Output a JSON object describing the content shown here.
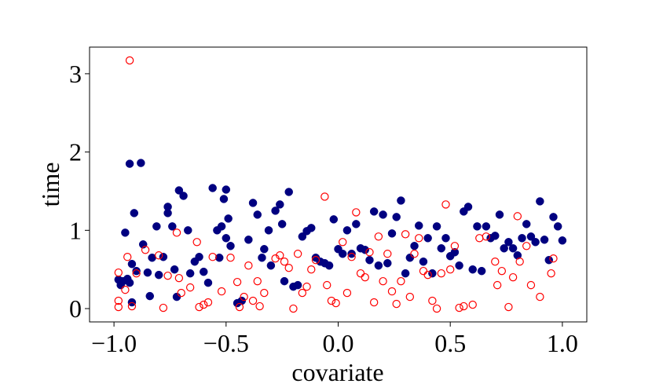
{
  "chart_data": {
    "type": "scatter",
    "x_label": "covariate",
    "y_label": "time",
    "xlim": [
      -1.109,
      1.109
    ],
    "ylim": [
      -0.17,
      3.34
    ],
    "xticks": [
      {
        "value": -1,
        "label": "−1.0"
      },
      {
        "value": -0.5,
        "label": "−0.5"
      },
      {
        "value": 0,
        "label": "0.0"
      },
      {
        "value": 0.5,
        "label": "0.5"
      },
      {
        "value": 1,
        "label": "1.0"
      }
    ],
    "yticks": [
      0,
      1,
      2,
      3
    ],
    "series": [
      {
        "color": "#000080",
        "filled": true,
        "x": [
          -0.98,
          -0.97,
          -0.96,
          -0.95,
          -0.93,
          -0.88,
          -0.91,
          -0.92,
          -0.9,
          -0.87,
          -0.93,
          -0.94,
          -0.92,
          -0.85,
          -0.84,
          -0.83,
          -0.81,
          -0.8,
          -0.78,
          -0.76,
          -0.76,
          -0.74,
          -0.73,
          -0.72,
          -0.71,
          -0.69,
          -0.67,
          -0.66,
          -0.64,
          -0.62,
          -0.6,
          -0.58,
          -0.56,
          -0.54,
          -0.53,
          -0.52,
          -0.5,
          -0.49,
          -0.5,
          -0.48,
          -0.51,
          -0.45,
          -0.43,
          -0.4,
          -0.38,
          -0.36,
          -0.34,
          -0.33,
          -0.31,
          -0.3,
          -0.28,
          -0.26,
          -0.25,
          -0.24,
          -0.22,
          -0.2,
          -0.18,
          -0.16,
          -0.14,
          -0.12,
          -0.1,
          -0.08,
          -0.06,
          -0.04,
          -0.02,
          0.0,
          0.02,
          0.04,
          0.06,
          0.08,
          0.1,
          0.12,
          0.14,
          0.16,
          0.18,
          0.2,
          0.22,
          0.24,
          0.26,
          0.28,
          0.3,
          0.32,
          0.34,
          0.36,
          0.38,
          0.4,
          0.42,
          0.44,
          0.46,
          0.48,
          0.5,
          0.52,
          0.54,
          0.56,
          0.58,
          0.6,
          0.62,
          0.64,
          0.66,
          0.68,
          0.7,
          0.72,
          0.74,
          0.76,
          0.78,
          0.8,
          0.82,
          0.84,
          0.86,
          0.88,
          0.9,
          0.92,
          0.94,
          0.96,
          0.98,
          1.0
        ],
        "values": [
          0.37,
          0.3,
          0.35,
          0.97,
          1.85,
          1.86,
          1.22,
          0.57,
          0.48,
          0.82,
          0.33,
          0.38,
          0.08,
          0.46,
          0.16,
          0.65,
          1.05,
          0.43,
          0.66,
          1.3,
          1.22,
          1.05,
          0.5,
          0.15,
          1.51,
          1.44,
          1.0,
          0.45,
          0.6,
          0.66,
          0.47,
          0.33,
          1.54,
          1.0,
          0.65,
          1.05,
          1.52,
          1.15,
          0.9,
          0.8,
          1.4,
          0.07,
          0.1,
          0.88,
          1.35,
          1.2,
          0.65,
          0.76,
          1.0,
          0.55,
          1.25,
          1.33,
          1.08,
          0.35,
          1.49,
          0.28,
          0.3,
          0.92,
          0.99,
          1.03,
          0.65,
          0.6,
          0.58,
          0.55,
          1.14,
          0.76,
          0.7,
          1.0,
          0.7,
          1.08,
          0.77,
          0.75,
          0.62,
          1.24,
          0.55,
          1.2,
          0.58,
          0.96,
          1.17,
          1.38,
          0.45,
          0.65,
          0.8,
          1.06,
          0.6,
          0.9,
          0.45,
          1.05,
          0.77,
          0.9,
          0.67,
          0.72,
          0.55,
          1.24,
          1.3,
          0.5,
          1.05,
          0.48,
          1.05,
          0.9,
          0.93,
          1.2,
          0.77,
          0.85,
          0.77,
          0.68,
          0.9,
          1.08,
          0.92,
          0.85,
          1.37,
          0.88,
          0.62,
          1.17,
          1.05,
          0.87
        ]
      },
      {
        "color": "#ff0000",
        "filled": false,
        "x": [
          -0.98,
          -0.98,
          -0.98,
          -0.95,
          -0.94,
          -0.93,
          -0.92,
          -0.9,
          -0.86,
          -0.8,
          -0.78,
          -0.76,
          -0.72,
          -0.71,
          -0.7,
          -0.66,
          -0.63,
          -0.62,
          -0.6,
          -0.58,
          -0.56,
          -0.52,
          -0.48,
          -0.45,
          -0.44,
          -0.42,
          -0.4,
          -0.38,
          -0.36,
          -0.35,
          -0.33,
          -0.28,
          -0.26,
          -0.24,
          -0.22,
          -0.2,
          -0.18,
          -0.16,
          -0.14,
          -0.12,
          -0.1,
          -0.06,
          -0.05,
          -0.03,
          -0.01,
          0.02,
          0.04,
          0.06,
          0.08,
          0.1,
          0.12,
          0.14,
          0.16,
          0.18,
          0.2,
          0.22,
          0.24,
          0.26,
          0.28,
          0.3,
          0.32,
          0.34,
          0.36,
          0.38,
          0.4,
          0.42,
          0.44,
          0.46,
          0.48,
          0.5,
          0.52,
          0.54,
          0.56,
          0.6,
          0.63,
          0.66,
          0.7,
          0.71,
          0.73,
          0.76,
          0.78,
          0.8,
          0.81,
          0.84,
          0.86,
          0.9,
          0.95,
          0.96
        ],
        "values": [
          0.46,
          0.1,
          0.02,
          0.24,
          0.66,
          3.17,
          0.03,
          0.45,
          0.75,
          0.68,
          0.01,
          0.42,
          0.97,
          0.39,
          0.2,
          0.27,
          0.85,
          0.02,
          0.05,
          0.08,
          0.66,
          0.22,
          0.65,
          0.34,
          0.02,
          0.15,
          0.55,
          0.1,
          0.35,
          0.03,
          0.2,
          0.64,
          0.68,
          0.6,
          0.52,
          0.0,
          0.7,
          0.2,
          0.28,
          0.5,
          0.62,
          1.43,
          0.3,
          0.1,
          0.07,
          0.85,
          0.2,
          0.66,
          1.23,
          0.45,
          0.4,
          0.72,
          0.08,
          0.92,
          0.35,
          0.7,
          0.22,
          0.06,
          0.35,
          0.95,
          0.15,
          0.7,
          0.9,
          0.48,
          0.43,
          0.1,
          0.0,
          0.45,
          1.33,
          0.5,
          0.8,
          0.01,
          0.03,
          0.05,
          0.9,
          0.92,
          0.6,
          0.3,
          0.48,
          0.02,
          0.4,
          1.18,
          0.6,
          0.8,
          0.3,
          0.15,
          0.45,
          0.64
        ]
      }
    ]
  }
}
